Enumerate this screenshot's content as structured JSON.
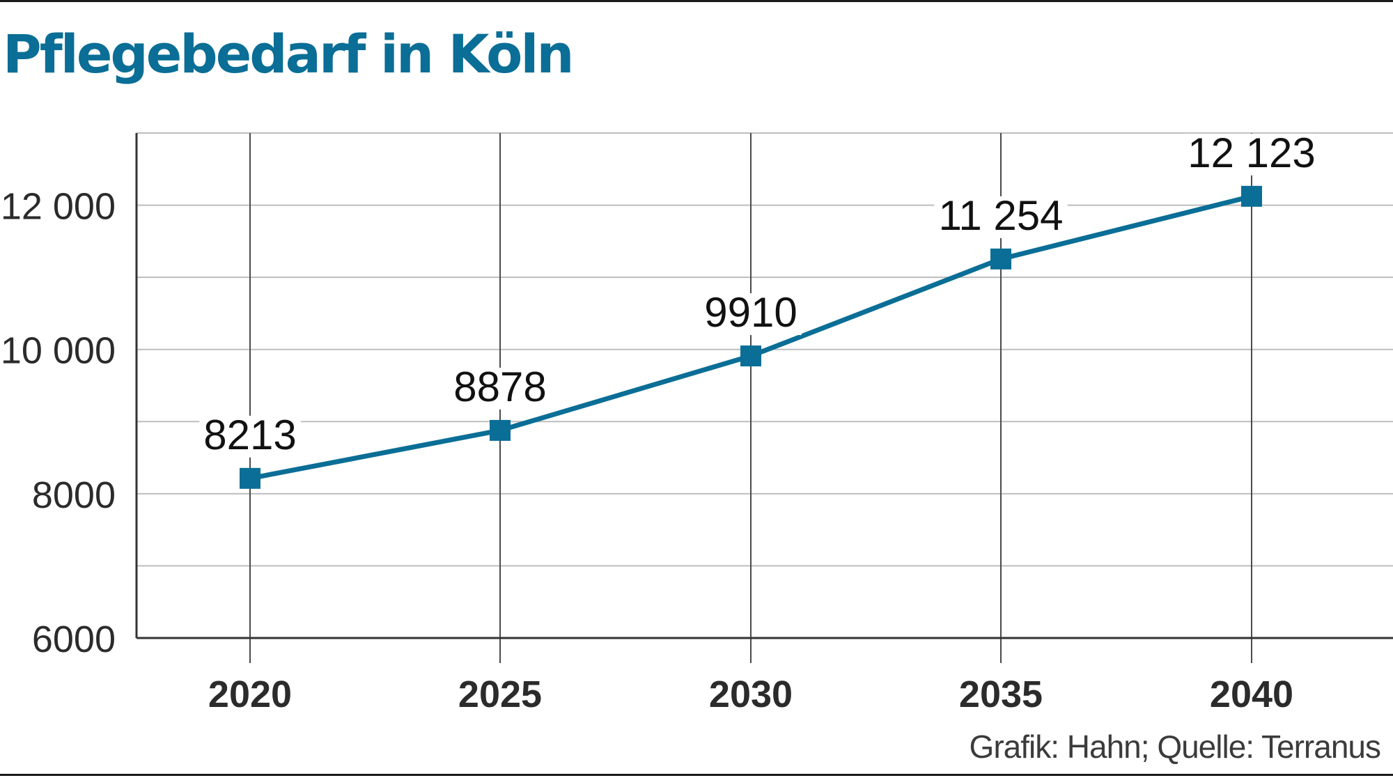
{
  "chart_data": {
    "type": "line",
    "title": "Pflegebedarf in Köln",
    "source": "Grafik: Hahn; Quelle: Terranus",
    "categories": [
      "2020",
      "2025",
      "2030",
      "2035",
      "2040"
    ],
    "series": [
      {
        "values": [
          8213,
          8878,
          9910,
          11254,
          12123
        ],
        "color": "#0a6e96"
      }
    ],
    "data_labels": [
      "8213",
      "8878",
      "9910",
      "11 254",
      "12 123"
    ],
    "y_ticks": [
      6000,
      8000,
      10000,
      12000
    ],
    "y_tick_labels": [
      "6000",
      "8000",
      "10 000",
      "12 000"
    ],
    "ylim": [
      6000,
      13000
    ],
    "grid": true,
    "marker": "square"
  }
}
